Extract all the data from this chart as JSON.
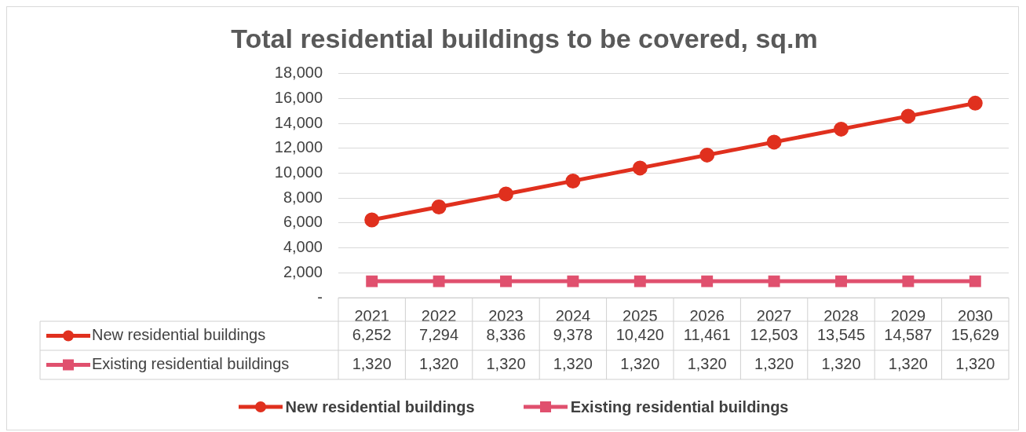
{
  "chart_data": {
    "type": "line",
    "title": "Total residential buildings to be covered, sq.m",
    "categories": [
      "2021",
      "2022",
      "2023",
      "2024",
      "2025",
      "2026",
      "2027",
      "2028",
      "2029",
      "2030"
    ],
    "series": [
      {
        "name": "New residential buildings",
        "color": "#e0301e",
        "marker": "circle",
        "values": [
          6252,
          7294,
          8336,
          9378,
          10420,
          11461,
          12503,
          13545,
          14587,
          15629
        ],
        "value_labels": [
          "6,252",
          "7,294",
          "8,336",
          "9,378",
          "10,420",
          "11,461",
          "12,503",
          "13,545",
          "14,587",
          "15,629"
        ]
      },
      {
        "name": "Existing residential buildings",
        "color": "#e0506e",
        "marker": "square",
        "values": [
          1320,
          1320,
          1320,
          1320,
          1320,
          1320,
          1320,
          1320,
          1320,
          1320
        ],
        "value_labels": [
          "1,320",
          "1,320",
          "1,320",
          "1,320",
          "1,320",
          "1,320",
          "1,320",
          "1,320",
          "1,320",
          "1,320"
        ]
      }
    ],
    "ylim": [
      0,
      18000
    ],
    "yticks": [
      {
        "value": 0,
        "label": "-"
      },
      {
        "value": 2000,
        "label": "2,000"
      },
      {
        "value": 4000,
        "label": "4,000"
      },
      {
        "value": 6000,
        "label": "6,000"
      },
      {
        "value": 8000,
        "label": "8,000"
      },
      {
        "value": 10000,
        "label": "10,000"
      },
      {
        "value": 12000,
        "label": "12,000"
      },
      {
        "value": 14000,
        "label": "14,000"
      },
      {
        "value": 16000,
        "label": "16,000"
      },
      {
        "value": 18000,
        "label": "18,000"
      }
    ],
    "grid": "y",
    "legend": "bottom",
    "line_style": "solid"
  }
}
